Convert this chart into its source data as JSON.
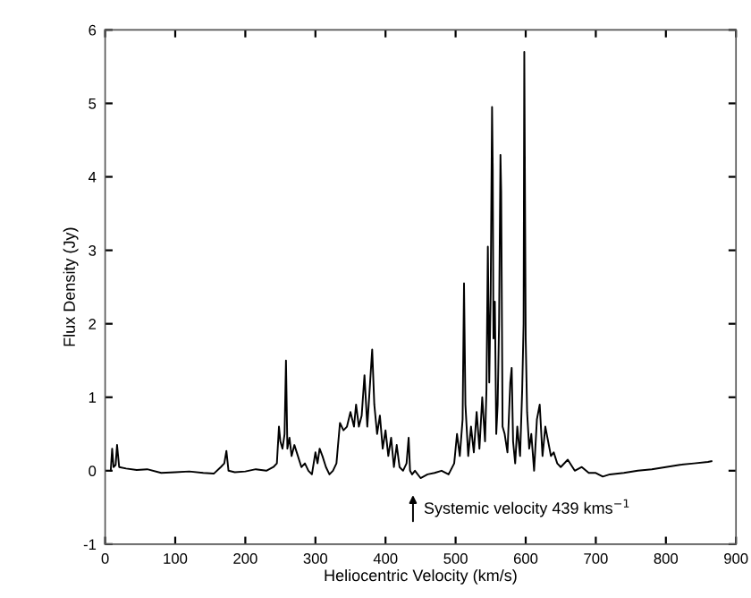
{
  "chart_data": {
    "type": "line",
    "xlabel": "Heliocentric Velocity (km/s)",
    "ylabel": "Flux Density (Jy)",
    "annotations": [
      "Systemic velocity 439 kms$^{−1}$"
    ],
    "series": [
      {
        "color": "#000000",
        "x": [
          8,
          10,
          12,
          15,
          17,
          20,
          30,
          45,
          60,
          80,
          100,
          120,
          140,
          155,
          165,
          170,
          173,
          176,
          185,
          200,
          215,
          230,
          240,
          245,
          248,
          250,
          253,
          256,
          258,
          260,
          263,
          266,
          270,
          275,
          280,
          285,
          290,
          295,
          300,
          303,
          306,
          310,
          315,
          320,
          325,
          330,
          335,
          340,
          345,
          350,
          355,
          358,
          362,
          366,
          370,
          374,
          378,
          381,
          384,
          388,
          392,
          396,
          400,
          404,
          408,
          412,
          416,
          420,
          425,
          430,
          433,
          435,
          438,
          442,
          450,
          460,
          470,
          480,
          490,
          498,
          502,
          506,
          510,
          512,
          514,
          518,
          522,
          526,
          530,
          534,
          538,
          542,
          544,
          546,
          548,
          550,
          552,
          553,
          554,
          556,
          558,
          560,
          562,
          564,
          565,
          567,
          570,
          574,
          578,
          580,
          582,
          585,
          588,
          592,
          595,
          597,
          598,
          600,
          602,
          605,
          608,
          612,
          616,
          620,
          624,
          628,
          632,
          636,
          640,
          645,
          650,
          660,
          670,
          680,
          690,
          700,
          710,
          720,
          740,
          760,
          780,
          800,
          820,
          840,
          860,
          865
        ],
        "values": [
          0.0,
          0.3,
          0.05,
          0.08,
          0.35,
          0.05,
          0.03,
          0.01,
          0.02,
          -0.03,
          -0.02,
          -0.01,
          -0.03,
          -0.04,
          0.05,
          0.1,
          0.27,
          0.0,
          -0.02,
          -0.01,
          0.02,
          0.0,
          0.05,
          0.1,
          0.6,
          0.4,
          0.3,
          0.5,
          1.5,
          0.3,
          0.45,
          0.2,
          0.35,
          0.2,
          0.05,
          0.1,
          0.0,
          -0.05,
          0.25,
          0.1,
          0.3,
          0.2,
          0.05,
          -0.05,
          0.0,
          0.1,
          0.65,
          0.55,
          0.6,
          0.8,
          0.6,
          0.9,
          0.6,
          0.75,
          1.3,
          0.6,
          1.2,
          1.65,
          0.9,
          0.5,
          0.75,
          0.3,
          0.55,
          0.2,
          0.45,
          0.05,
          0.35,
          0.05,
          0.0,
          0.1,
          0.45,
          0.0,
          -0.05,
          0.0,
          -0.1,
          -0.05,
          -0.03,
          0.0,
          -0.05,
          0.1,
          0.5,
          0.2,
          0.7,
          2.55,
          0.9,
          0.2,
          0.6,
          0.25,
          0.8,
          0.3,
          1.0,
          0.4,
          1.1,
          3.05,
          1.2,
          2.4,
          4.95,
          4.1,
          1.8,
          2.3,
          0.5,
          0.9,
          2.0,
          4.3,
          3.8,
          0.6,
          0.5,
          0.25,
          1.2,
          1.4,
          0.4,
          0.1,
          0.6,
          0.2,
          1.1,
          2.0,
          5.7,
          1.8,
          0.8,
          0.3,
          0.5,
          0.0,
          0.7,
          0.9,
          0.2,
          0.6,
          0.4,
          0.2,
          0.25,
          0.1,
          0.05,
          0.15,
          0.0,
          0.05,
          -0.03,
          -0.03,
          -0.08,
          -0.05,
          -0.03,
          0.0,
          0.02,
          0.05,
          0.08,
          0.1,
          0.12,
          0.13
        ]
      }
    ],
    "xlim": [
      0,
      900
    ],
    "ylim": [
      -1,
      6
    ],
    "xticks": [
      0,
      100,
      200,
      300,
      400,
      500,
      600,
      700,
      800,
      900
    ],
    "yticks": [
      -1,
      0,
      1,
      2,
      3,
      4,
      5,
      6
    ],
    "grid": false,
    "legend": false,
    "marker": "none",
    "line_style": "solid"
  }
}
